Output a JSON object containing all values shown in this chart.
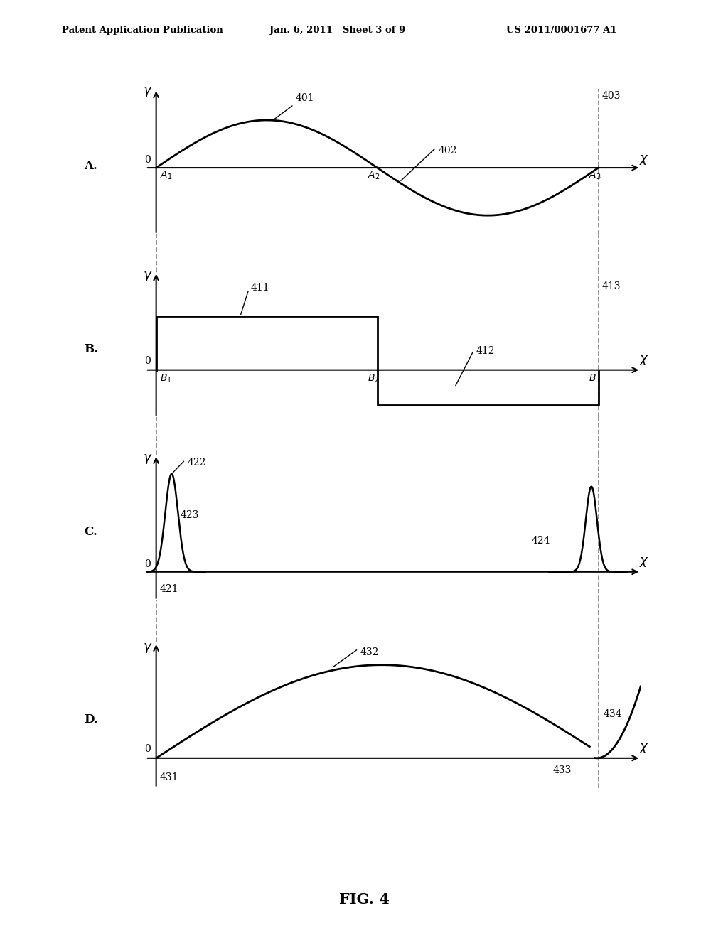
{
  "header_left": "Patent Application Publication",
  "header_mid": "Jan. 6, 2011   Sheet 3 of 9",
  "header_right": "US 2011/0001677 A1",
  "fig_label": "FIG. 4",
  "background": "#ffffff",
  "cc": "#000000",
  "dc": "#888888",
  "panel_A_label": "A.",
  "panel_B_label": "B.",
  "panel_C_label": "C.",
  "panel_D_label": "D."
}
